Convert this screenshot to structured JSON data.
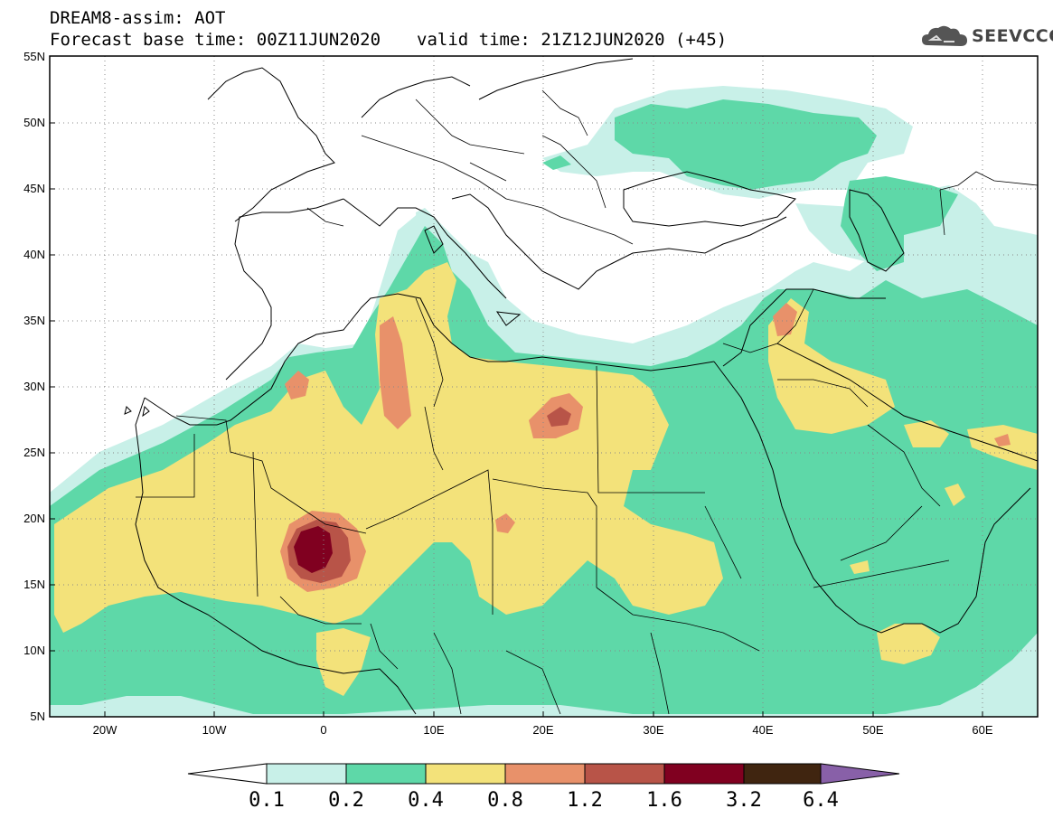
{
  "title": {
    "line1": "DREAM8-assim: AOT",
    "base_time": "Forecast base time: 00Z11JUN2020",
    "valid_time": "valid time: 21Z12JUN2020 (+45)"
  },
  "logo": {
    "text": "SEEVCCC",
    "icon": "cloud-logo-icon"
  },
  "map": {
    "lon_range": [
      -25,
      65
    ],
    "lat_range": [
      5,
      55
    ],
    "lon_ticks": [
      "20W",
      "10W",
      "0",
      "10E",
      "20E",
      "30E",
      "40E",
      "50E",
      "60E"
    ],
    "lat_ticks": [
      "55N",
      "50N",
      "45N",
      "40N",
      "35N",
      "30N",
      "25N",
      "20N",
      "15N",
      "10N",
      "5N"
    ],
    "grid": "dotted"
  },
  "colorbar": {
    "levels": [
      "0.1",
      "0.2",
      "0.4",
      "0.8",
      "1.2",
      "1.6",
      "3.2",
      "6.4"
    ],
    "colors": [
      "#ffffff",
      "#c8f0e8",
      "#5ed8a8",
      "#f3e27a",
      "#e8916a",
      "#b85448",
      "#800020",
      "#402510",
      "#8860a8"
    ]
  }
}
